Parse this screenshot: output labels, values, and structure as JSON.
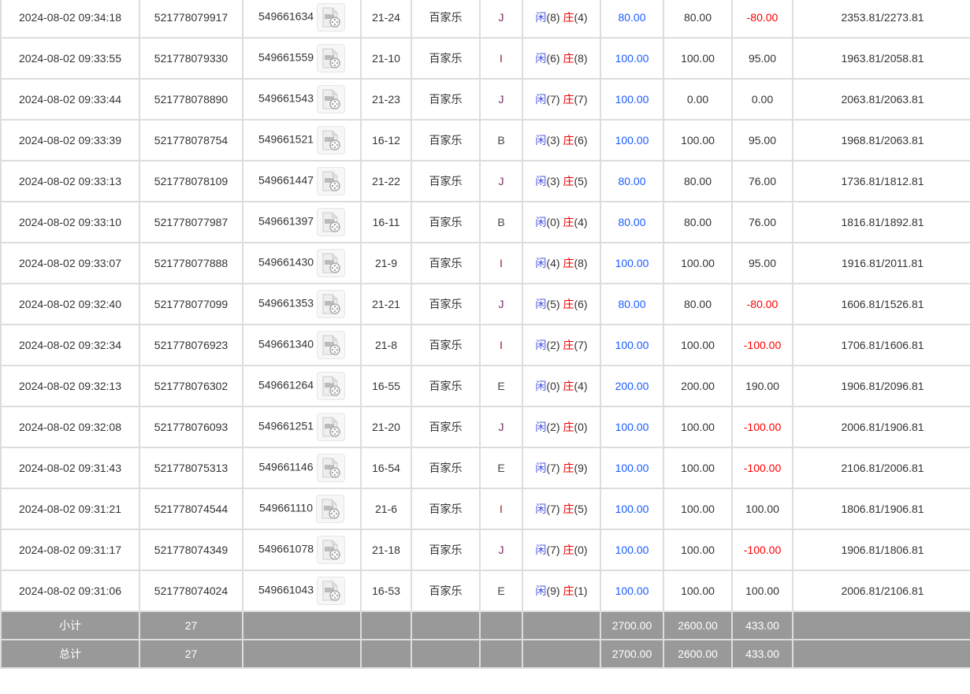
{
  "rows": [
    {
      "time": "2024-08-02 09:34:18",
      "bet_id": "521778079917",
      "round": "549661634",
      "table": "21-24",
      "game": "百家乐",
      "bet_type": "J",
      "player_label": "闲",
      "player": "(8)",
      "banker_label": "庄",
      "banker": "(4)",
      "bet": "80.00",
      "valid": "80.00",
      "win": "-80.00",
      "balance": "2353.81/2273.81"
    },
    {
      "time": "2024-08-02 09:33:55",
      "bet_id": "521778079330",
      "round": "549661559",
      "table": "21-10",
      "game": "百家乐",
      "bet_type": "I",
      "player_label": "闲",
      "player": "(6)",
      "banker_label": "庄",
      "banker": "(8)",
      "bet": "100.00",
      "valid": "100.00",
      "win": "95.00",
      "balance": "1963.81/2058.81"
    },
    {
      "time": "2024-08-02 09:33:44",
      "bet_id": "521778078890",
      "round": "549661543",
      "table": "21-23",
      "game": "百家乐",
      "bet_type": "J",
      "player_label": "闲",
      "player": "(7)",
      "banker_label": "庄",
      "banker": "(7)",
      "bet": "100.00",
      "valid": "0.00",
      "win": "0.00",
      "balance": "2063.81/2063.81"
    },
    {
      "time": "2024-08-02 09:33:39",
      "bet_id": "521778078754",
      "round": "549661521",
      "table": "16-12",
      "game": "百家乐",
      "bet_type": "B",
      "player_label": "闲",
      "player": "(3)",
      "banker_label": "庄",
      "banker": "(6)",
      "bet": "100.00",
      "valid": "100.00",
      "win": "95.00",
      "balance": "1968.81/2063.81"
    },
    {
      "time": "2024-08-02 09:33:13",
      "bet_id": "521778078109",
      "round": "549661447",
      "table": "21-22",
      "game": "百家乐",
      "bet_type": "J",
      "player_label": "闲",
      "player": "(3)",
      "banker_label": "庄",
      "banker": "(5)",
      "bet": "80.00",
      "valid": "80.00",
      "win": "76.00",
      "balance": "1736.81/1812.81"
    },
    {
      "time": "2024-08-02 09:33:10",
      "bet_id": "521778077987",
      "round": "549661397",
      "table": "16-11",
      "game": "百家乐",
      "bet_type": "B",
      "player_label": "闲",
      "player": "(0)",
      "banker_label": "庄",
      "banker": "(4)",
      "bet": "80.00",
      "valid": "80.00",
      "win": "76.00",
      "balance": "1816.81/1892.81"
    },
    {
      "time": "2024-08-02 09:33:07",
      "bet_id": "521778077888",
      "round": "549661430",
      "table": "21-9",
      "game": "百家乐",
      "bet_type": "I",
      "player_label": "闲",
      "player": "(4)",
      "banker_label": "庄",
      "banker": "(8)",
      "bet": "100.00",
      "valid": "100.00",
      "win": "95.00",
      "balance": "1916.81/2011.81"
    },
    {
      "time": "2024-08-02 09:32:40",
      "bet_id": "521778077099",
      "round": "549661353",
      "table": "21-21",
      "game": "百家乐",
      "bet_type": "J",
      "player_label": "闲",
      "player": "(5)",
      "banker_label": "庄",
      "banker": "(6)",
      "bet": "80.00",
      "valid": "80.00",
      "win": "-80.00",
      "balance": "1606.81/1526.81"
    },
    {
      "time": "2024-08-02 09:32:34",
      "bet_id": "521778076923",
      "round": "549661340",
      "table": "21-8",
      "game": "百家乐",
      "bet_type": "I",
      "player_label": "闲",
      "player": "(2)",
      "banker_label": "庄",
      "banker": "(7)",
      "bet": "100.00",
      "valid": "100.00",
      "win": "-100.00",
      "balance": "1706.81/1606.81"
    },
    {
      "time": "2024-08-02 09:32:13",
      "bet_id": "521778076302",
      "round": "549661264",
      "table": "16-55",
      "game": "百家乐",
      "bet_type": "E",
      "player_label": "闲",
      "player": "(0)",
      "banker_label": "庄",
      "banker": "(4)",
      "bet": "200.00",
      "valid": "200.00",
      "win": "190.00",
      "balance": "1906.81/2096.81"
    },
    {
      "time": "2024-08-02 09:32:08",
      "bet_id": "521778076093",
      "round": "549661251",
      "table": "21-20",
      "game": "百家乐",
      "bet_type": "J",
      "player_label": "闲",
      "player": "(2)",
      "banker_label": "庄",
      "banker": "(0)",
      "bet": "100.00",
      "valid": "100.00",
      "win": "-100.00",
      "balance": "2006.81/1906.81"
    },
    {
      "time": "2024-08-02 09:31:43",
      "bet_id": "521778075313",
      "round": "549661146",
      "table": "16-54",
      "game": "百家乐",
      "bet_type": "E",
      "player_label": "闲",
      "player": "(7)",
      "banker_label": "庄",
      "banker": "(9)",
      "bet": "100.00",
      "valid": "100.00",
      "win": "-100.00",
      "balance": "2106.81/2006.81"
    },
    {
      "time": "2024-08-02 09:31:21",
      "bet_id": "521778074544",
      "round": "549661110",
      "table": "21-6",
      "game": "百家乐",
      "bet_type": "I",
      "player_label": "闲",
      "player": "(7)",
      "banker_label": "庄",
      "banker": "(5)",
      "bet": "100.00",
      "valid": "100.00",
      "win": "100.00",
      "balance": "1806.81/1906.81"
    },
    {
      "time": "2024-08-02 09:31:17",
      "bet_id": "521778074349",
      "round": "549661078",
      "table": "21-18",
      "game": "百家乐",
      "bet_type": "J",
      "player_label": "闲",
      "player": "(7)",
      "banker_label": "庄",
      "banker": "(0)",
      "bet": "100.00",
      "valid": "100.00",
      "win": "-100.00",
      "balance": "1906.81/1806.81"
    },
    {
      "time": "2024-08-02 09:31:06",
      "bet_id": "521778074024",
      "round": "549661043",
      "table": "16-53",
      "game": "百家乐",
      "bet_type": "E",
      "player_label": "闲",
      "player": "(9)",
      "banker_label": "庄",
      "banker": "(1)",
      "bet": "100.00",
      "valid": "100.00",
      "win": "100.00",
      "balance": "2006.81/2106.81"
    }
  ],
  "summary": [
    {
      "label": "小计",
      "count": "27",
      "bet": "2700.00",
      "valid": "2600.00",
      "win": "433.00"
    },
    {
      "label": "总计",
      "count": "27",
      "bet": "2700.00",
      "valid": "2600.00",
      "win": "433.00"
    }
  ],
  "icons": {
    "replay": "video-file-icon"
  },
  "colors": {
    "bet_amount": "#1a5cff",
    "loss": "#ff0000",
    "player": "#4a55e0",
    "banker": "#ee0000",
    "summary_bg": "#999999",
    "border": "#dddddd"
  }
}
